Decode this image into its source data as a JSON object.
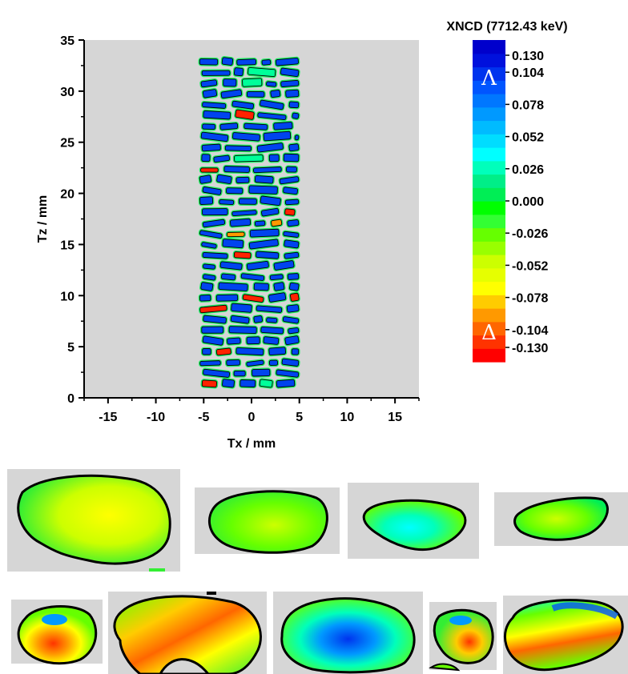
{
  "chart_data": {
    "type": "heatmap",
    "title": "",
    "xlabel": "Tx / mm",
    "ylabel": "Tz / mm",
    "xlim": [
      -17.5,
      17.5
    ],
    "ylim": [
      0,
      35
    ],
    "x_ticks": [
      "-15",
      "-10",
      "-5",
      "0",
      "5",
      "10",
      "15"
    ],
    "x_tick_values": [
      -15,
      -10,
      -5,
      0,
      5,
      10,
      15
    ],
    "y_ticks": [
      "0",
      "5",
      "10",
      "15",
      "20",
      "25",
      "30",
      "35"
    ],
    "y_tick_values": [
      0,
      5,
      10,
      15,
      20,
      25,
      30,
      35
    ],
    "sample_region": {
      "x": [
        -5.5,
        5.0
      ],
      "y": [
        1.0,
        33.5
      ]
    },
    "colorbar": {
      "title": "XNCD (7712.43 keV)",
      "tick_labels": [
        "0.130",
        "0.104",
        "0.078",
        "0.052",
        "0.026",
        "0.000",
        "-0.026",
        "-0.052",
        "-0.078",
        "-0.104",
        "-0.130"
      ],
      "tick_values": [
        0.13,
        0.104,
        0.078,
        0.052,
        0.026,
        0.0,
        -0.026,
        -0.052,
        -0.078,
        -0.104,
        -0.13
      ],
      "range": [
        -0.13,
        0.13
      ],
      "upper_symbol": "Λ",
      "lower_symbol": "Δ",
      "colors": [
        "#ff0000",
        "#ff3300",
        "#ff6600",
        "#ff9900",
        "#ffcc00",
        "#ffff00",
        "#e6ff00",
        "#ccff00",
        "#99ff00",
        "#66ff00",
        "#33ff33",
        "#00ff00",
        "#00ee55",
        "#00ee88",
        "#00ffbb",
        "#00ffff",
        "#00ddff",
        "#00bbff",
        "#0099ff",
        "#0077ff",
        "#0055ff",
        "#0033ee",
        "#0011dd",
        "#0000cc"
      ]
    },
    "crystallites_zoom": [
      {
        "id": 1,
        "dominant": "yellow-green"
      },
      {
        "id": 2,
        "dominant": "green"
      },
      {
        "id": 3,
        "dominant": "cyan-green"
      },
      {
        "id": 4,
        "dominant": "green"
      },
      {
        "id": 5,
        "dominant": "red-orange-blue"
      },
      {
        "id": 6,
        "dominant": "red-orange-green"
      },
      {
        "id": 7,
        "dominant": "blue"
      },
      {
        "id": 8,
        "dominant": "orange-green"
      },
      {
        "id": 9,
        "dominant": "orange-cyan"
      }
    ],
    "grid": false,
    "plot_background": "#d6d6d6"
  }
}
